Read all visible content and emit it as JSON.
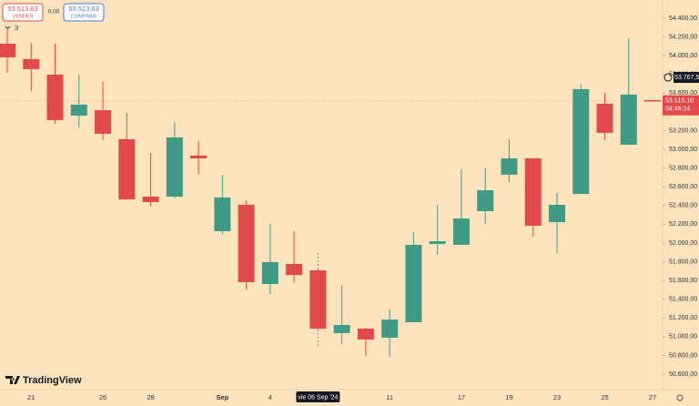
{
  "header": {
    "sell_price": "53.513,63",
    "sell_label": "VENDER",
    "spread": "0,00",
    "buy_price": "53.513,63",
    "buy_label": "COMPRAR",
    "indicator_count": "3",
    "brand": "TradingView"
  },
  "chart_data": {
    "type": "candlestick",
    "categories": [
      null,
      "21",
      null,
      null,
      "26",
      null,
      "28",
      null,
      null,
      "Sep",
      null,
      "4",
      null,
      null,
      null,
      null,
      "11",
      null,
      null,
      "17",
      null,
      "19",
      null,
      "23",
      null,
      "25",
      null,
      "27"
    ],
    "open": [
      54128,
      53963,
      53797,
      53360,
      53418,
      53108,
      52495,
      52495,
      52933,
      52126,
      52408,
      51562,
      51776,
      51708,
      51038,
      51086,
      50989,
      51154,
      51990,
      51980,
      52340,
      52729,
      52904,
      52223,
      52524,
      53486,
      53049,
      53525
    ],
    "high": [
      54303,
      54138,
      54128,
      53797,
      53720,
      53389,
      52962,
      53292,
      53088,
      52729,
      52456,
      52204,
      52126,
      51718,
      51553,
      51096,
      51290,
      52116,
      52408,
      52787,
      52806,
      53108,
      52904,
      52534,
      53691,
      53603,
      54186,
      53530
    ],
    "low": [
      53817,
      53623,
      53273,
      53234,
      53098,
      52466,
      52388,
      52476,
      52729,
      52087,
      51504,
      51455,
      51582,
      51076,
      50921,
      50795,
      50785,
      51154,
      51873,
      51980,
      52204,
      52651,
      52068,
      51893,
      52524,
      53098,
      53049,
      53510
    ],
    "close": [
      53982,
      53856,
      53312,
      53477,
      53166,
      52466,
      52437,
      53127,
      52903,
      52486,
      51582,
      51796,
      51659,
      51086,
      51125,
      50970,
      51183,
      51980,
      52019,
      52262,
      52563,
      52904,
      52184,
      52408,
      53642,
      53176,
      53584,
      53515
    ],
    "up_color": "#3f9b85",
    "down_color": "#e2494a",
    "ylim": [
      50464,
      54594
    ],
    "yticks": [
      {
        "value": 54400,
        "label": "54.400,00"
      },
      {
        "value": 54200,
        "label": "54.200,00"
      },
      {
        "value": 54000,
        "label": "54.000,00"
      },
      {
        "value": 53800,
        "label": "53.800,00"
      },
      {
        "value": 53600,
        "label": "53.600,00"
      },
      {
        "value": 53400,
        "label": "53.400,00"
      },
      {
        "value": 53200,
        "label": "53.200,00"
      },
      {
        "value": 53000,
        "label": "53.000,00"
      },
      {
        "value": 52800,
        "label": "52.800,00"
      },
      {
        "value": 52600,
        "label": "52.600,00"
      },
      {
        "value": 52400,
        "label": "52.400,00"
      },
      {
        "value": 52200,
        "label": "52.200,00"
      },
      {
        "value": 52000,
        "label": "52.000,00"
      },
      {
        "value": 51800,
        "label": "51.800,00"
      },
      {
        "value": 51600,
        "label": "51.600,00"
      },
      {
        "value": 51400,
        "label": "51.400,00"
      },
      {
        "value": 51200,
        "label": "51.200,00"
      },
      {
        "value": 51000,
        "label": "51.000,00"
      },
      {
        "value": 50800,
        "label": "50.800,00"
      },
      {
        "value": 50600,
        "label": "50.600,00"
      }
    ],
    "grid": false,
    "last_price": {
      "value": 53518.1,
      "label": "53.518,10"
    },
    "countdown": "04:46:24",
    "crosshair": {
      "price": {
        "value": 53767.59,
        "label": "53.767,59"
      },
      "date_label": "vie 06 Sep '24"
    }
  }
}
